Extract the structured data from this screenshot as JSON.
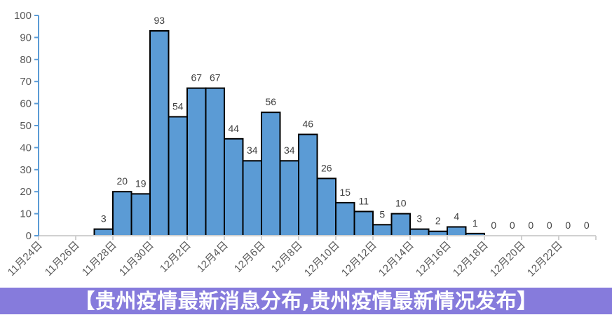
{
  "chart_data": {
    "type": "bar",
    "title": "",
    "xlabel": "",
    "ylabel": "",
    "ylim": [
      0,
      100
    ],
    "yticks": [
      0,
      10,
      20,
      30,
      40,
      50,
      60,
      70,
      80,
      90,
      100
    ],
    "grid": false,
    "categories": [
      "11月24日",
      "11月25日",
      "11月26日",
      "11月27日",
      "11月28日",
      "11月29日",
      "11月30日",
      "12月1日",
      "12月2日",
      "12月3日",
      "12月4日",
      "12月5日",
      "12月6日",
      "12月7日",
      "12月8日",
      "12月9日",
      "12月10日",
      "12月11日",
      "12月12日",
      "12月13日",
      "12月14日",
      "12月15日",
      "12月16日",
      "12月17日",
      "12月18日",
      "12月19日",
      "12月20日",
      "12月21日",
      "12月22日",
      "12月23日"
    ],
    "tick_labels": [
      "11月24日",
      "11月26日",
      "11月28日",
      "11月30日",
      "12月2日",
      "12月4日",
      "12月6日",
      "12月8日",
      "12月10日",
      "12月12日",
      "12月14日",
      "12月16日",
      "12月18日",
      "12月20日",
      "12月22日"
    ],
    "values": [
      null,
      null,
      null,
      3,
      20,
      19,
      93,
      54,
      67,
      67,
      44,
      34,
      56,
      34,
      46,
      26,
      15,
      11,
      5,
      10,
      3,
      2,
      4,
      1,
      0,
      0,
      0,
      0,
      0,
      0
    ],
    "colors": {
      "bar": "#5b9bd5",
      "bar_edge": "#000000",
      "y_axis": "#5b9bd5",
      "x_axis": "#d0d0d0"
    }
  },
  "banner": {
    "text": "【贵州疫情最新消息分布,贵州疫情最新情况发布】"
  }
}
